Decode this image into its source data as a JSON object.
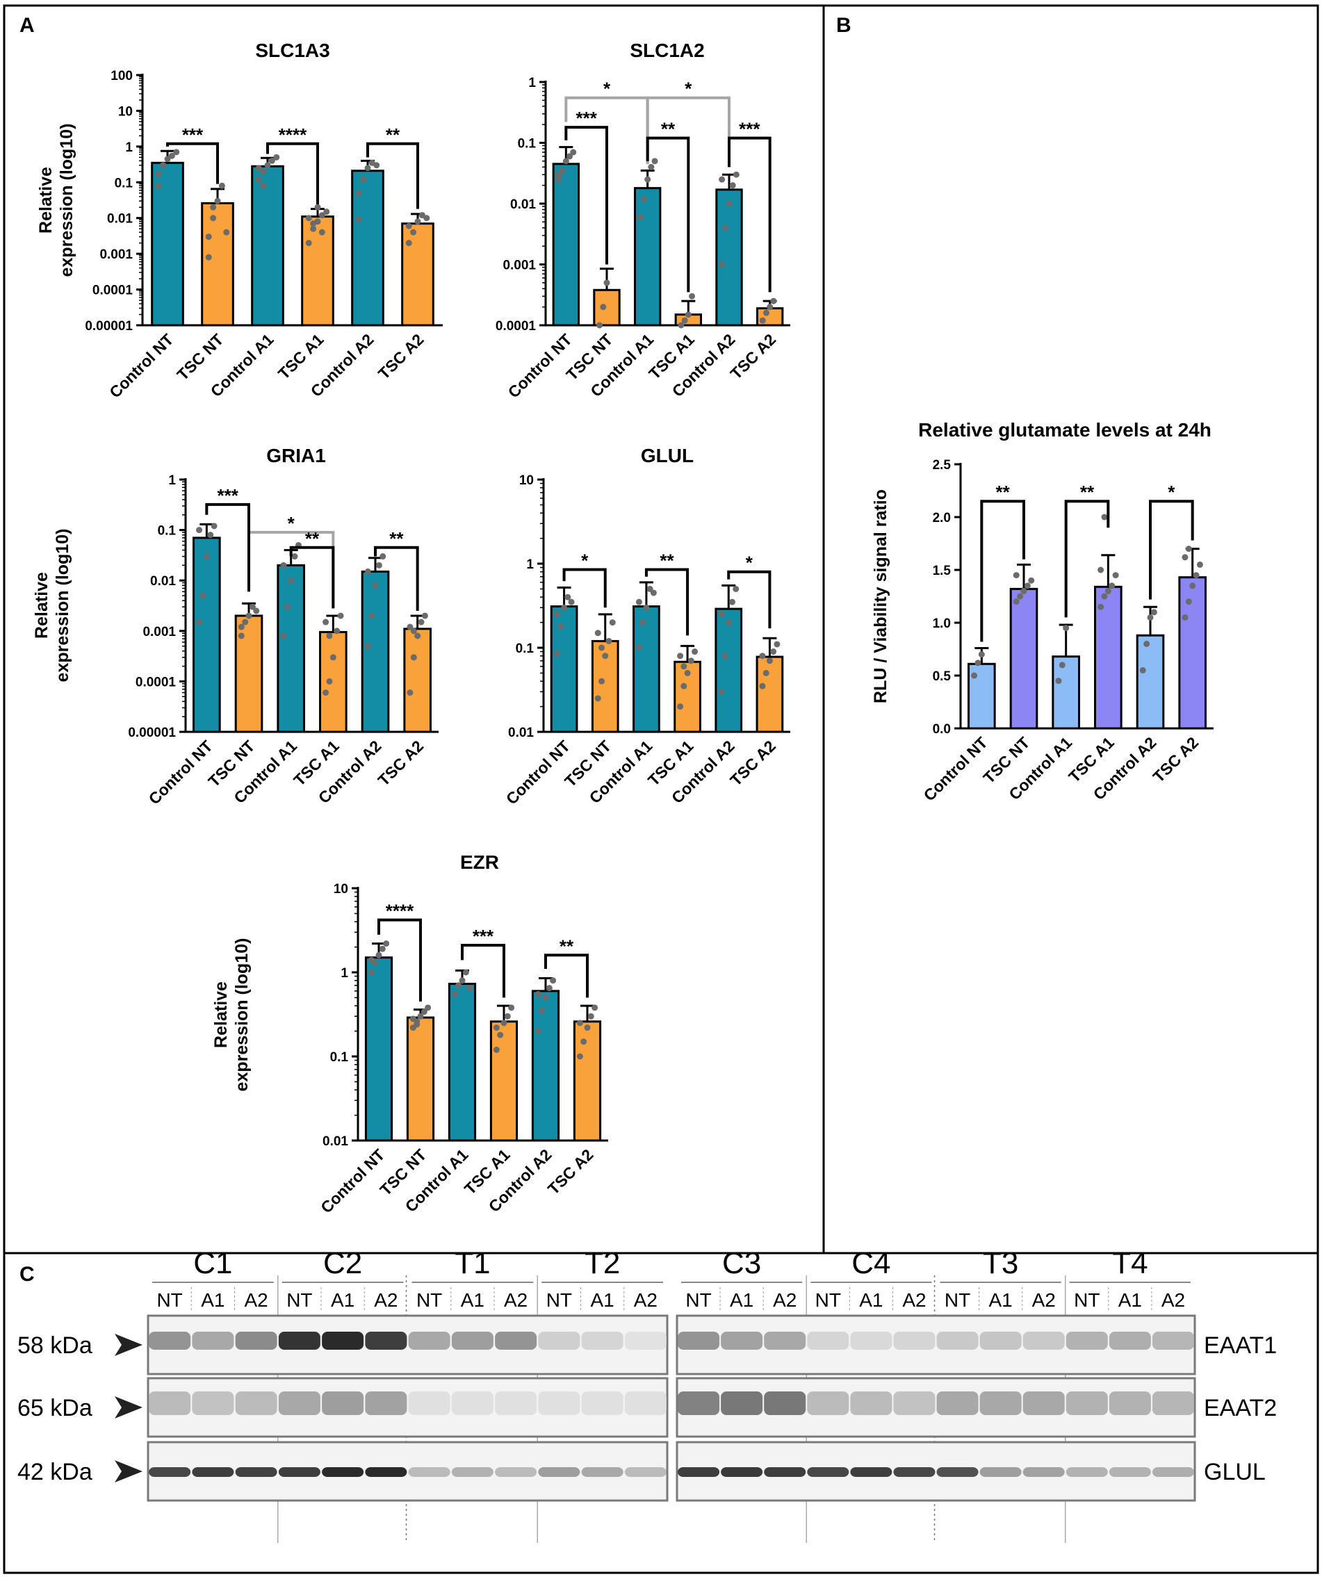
{
  "panels": {
    "a": "A",
    "b": "B",
    "c": "C"
  },
  "colors": {
    "control": "#138da5",
    "tsc": "#f9a23c",
    "control_glut": "#8cbcf5",
    "tsc_glut": "#8b86f3",
    "dot": "#6b6b6b",
    "bracket": "#000000",
    "bracket_gray": "#a6a6a6"
  },
  "chart_data": [
    {
      "id": "slc1a3",
      "type": "bar",
      "scale": "log",
      "title": "SLC1A3",
      "ylabel": "Relative expression (log10)",
      "ylabel_lines": [
        "Relative",
        "expression (log10)"
      ],
      "ylim": [
        1e-05,
        100
      ],
      "yticks": [
        1e-05,
        0.0001,
        0.001,
        0.01,
        0.1,
        1,
        10,
        100
      ],
      "ytick_labels": [
        "0.00001",
        "0.0001",
        "0.001",
        "0.01",
        "0.1",
        "1",
        "10",
        "100"
      ],
      "categories": [
        "Control NT",
        "TSC NT",
        "Control A1",
        "TSC A1",
        "Control A2",
        "TSC A2"
      ],
      "groups": [
        "control",
        "tsc",
        "control",
        "tsc",
        "control",
        "tsc"
      ],
      "values": [
        0.35,
        0.026,
        0.28,
        0.011,
        0.21,
        0.007
      ],
      "err_high": [
        0.75,
        0.065,
        0.48,
        0.018,
        0.4,
        0.013
      ],
      "points": [
        [
          0.17,
          0.3,
          0.45,
          0.55,
          0.7,
          0.08
        ],
        [
          0.003,
          0.01,
          0.03,
          0.08,
          0.004,
          0.0008,
          0.02
        ],
        [
          0.12,
          0.2,
          0.3,
          0.4,
          0.5,
          0.25,
          0.08
        ],
        [
          0.002,
          0.005,
          0.008,
          0.012,
          0.015,
          0.01,
          0.007,
          0.02,
          0.004
        ],
        [
          0.05,
          0.12,
          0.25,
          0.35,
          0.3,
          0.009
        ],
        [
          0.002,
          0.004,
          0.008,
          0.012,
          0.01,
          0.006
        ]
      ],
      "brackets": [
        {
          "from": 0,
          "to": 1,
          "level": 1.2,
          "drop_to": [
            1,
            0.09
          ],
          "label": "***",
          "color": "black"
        },
        {
          "from": 2,
          "to": 3,
          "level": 1.2,
          "drop_to": [
            0.62,
            0.024
          ],
          "label": "****",
          "color": "black"
        },
        {
          "from": 4,
          "to": 5,
          "level": 1.2,
          "drop_to": [
            0.5,
            0.018
          ],
          "label": "**",
          "color": "black"
        }
      ]
    },
    {
      "id": "slc1a2",
      "type": "bar",
      "scale": "log",
      "title": "SLC1A2",
      "ylabel": "",
      "ylabel_lines": [],
      "ylim": [
        0.0001,
        1
      ],
      "yticks": [
        0.0001,
        0.001,
        0.01,
        0.1,
        1
      ],
      "ytick_labels": [
        "0.0001",
        "0.001",
        "0.01",
        "0.1",
        "1"
      ],
      "categories": [
        "Control NT",
        "TSC NT",
        "Control A1",
        "TSC A1",
        "Control A2",
        "TSC A2"
      ],
      "groups": [
        "control",
        "tsc",
        "control",
        "tsc",
        "control",
        "tsc"
      ],
      "values": [
        0.045,
        0.00038,
        0.018,
        0.00015,
        0.017,
        0.00019
      ],
      "err_high": [
        0.085,
        0.00085,
        0.035,
        0.00025,
        0.03,
        0.00025
      ],
      "points": [
        [
          0.025,
          0.035,
          0.05,
          0.06,
          0.07,
          0.03
        ],
        [
          0.0001,
          0.0002,
          0.0005
        ],
        [
          0.006,
          0.012,
          0.025,
          0.04,
          0.05
        ],
        [
          0.0001,
          0.00012,
          0.00015,
          0.0003
        ],
        [
          0.001,
          0.004,
          0.01,
          0.02,
          0.03,
          0.025
        ],
        [
          0.00012,
          0.00016,
          0.0002,
          0.00025
        ]
      ],
      "brackets": [
        {
          "from": 0,
          "to": 2,
          "level": 0.55,
          "drop_to": [
            0.22,
            0.045
          ],
          "label": "*",
          "color": "gray"
        },
        {
          "from": 2,
          "to": 4,
          "level": 0.55,
          "drop_to": [
            0.045,
            0.045
          ],
          "label": "*",
          "color": "gray"
        },
        {
          "from": 0,
          "to": 1,
          "level": 0.18,
          "drop_to": [
            0.11,
            0.001
          ],
          "label": "***",
          "color": "black"
        },
        {
          "from": 2,
          "to": 3,
          "level": 0.12,
          "drop_to": [
            0.05,
            0.00035
          ],
          "label": "**",
          "color": "black"
        },
        {
          "from": 4,
          "to": 5,
          "level": 0.12,
          "drop_to": [
            0.04,
            0.00035
          ],
          "label": "***",
          "color": "black"
        }
      ]
    },
    {
      "id": "gria1",
      "type": "bar",
      "scale": "log",
      "title": "GRIA1",
      "ylabel": "Relative expression (log10)",
      "ylabel_lines": [
        "Relative",
        "expression (log10)"
      ],
      "ylim": [
        1e-05,
        1
      ],
      "yticks": [
        1e-05,
        0.0001,
        0.001,
        0.01,
        0.1,
        1
      ],
      "ytick_labels": [
        "0.00001",
        "0.0001",
        "0.001",
        "0.01",
        "0.1",
        "1"
      ],
      "categories": [
        "Control NT",
        "TSC NT",
        "Control A1",
        "TSC A1",
        "Control A2",
        "TSC A2"
      ],
      "groups": [
        "control",
        "tsc",
        "control",
        "tsc",
        "control",
        "tsc"
      ],
      "values": [
        0.07,
        0.002,
        0.02,
        0.00095,
        0.015,
        0.0011
      ],
      "err_high": [
        0.13,
        0.0035,
        0.04,
        0.002,
        0.028,
        0.002
      ],
      "points": [
        [
          0.0015,
          0.005,
          0.03,
          0.08,
          0.12,
          0.1
        ],
        [
          0.0008,
          0.0015,
          0.002,
          0.003,
          0.0025,
          0.0012
        ],
        [
          0.0008,
          0.003,
          0.01,
          0.03,
          0.05,
          0.02
        ],
        [
          6e-05,
          0.0001,
          0.0003,
          0.001,
          0.002,
          0.0015,
          0.0008
        ],
        [
          0.0005,
          0.002,
          0.008,
          0.02,
          0.03,
          0.015
        ],
        [
          6e-05,
          0.0003,
          0.0008,
          0.0015,
          0.002,
          0.0012,
          0.001
        ]
      ],
      "brackets": [
        {
          "from": 1,
          "to": 3,
          "level": 0.09,
          "drop_to": [
            0.006,
            0.003
          ],
          "label": "*",
          "color": "gray"
        },
        {
          "from": 0,
          "to": 1,
          "level": 0.32,
          "drop_to": [
            0.2,
            0.006
          ],
          "label": "***",
          "color": "black"
        },
        {
          "from": 2,
          "to": 3,
          "level": 0.045,
          "drop_to": [
            0.03,
            0.0028
          ],
          "label": "**",
          "color": "black"
        },
        {
          "from": 4,
          "to": 5,
          "level": 0.045,
          "drop_to": [
            0.03,
            0.0025
          ],
          "label": "**",
          "color": "black"
        }
      ]
    },
    {
      "id": "glul",
      "type": "bar",
      "scale": "log",
      "title": "GLUL",
      "ylabel": "",
      "ylabel_lines": [],
      "ylim": [
        0.01,
        10
      ],
      "yticks": [
        0.01,
        0.1,
        1,
        10
      ],
      "ytick_labels": [
        "0.01",
        "0.1",
        "1",
        "10"
      ],
      "categories": [
        "Control NT",
        "TSC NT",
        "Control A1",
        "TSC A1",
        "Control A2",
        "TSC A2"
      ],
      "groups": [
        "control",
        "tsc",
        "control",
        "tsc",
        "control",
        "tsc"
      ],
      "values": [
        0.31,
        0.12,
        0.31,
        0.068,
        0.29,
        0.078
      ],
      "err_high": [
        0.52,
        0.25,
        0.6,
        0.105,
        0.55,
        0.13
      ],
      "points": [
        [
          0.085,
          0.18,
          0.3,
          0.4,
          0.35,
          0.25
        ],
        [
          0.025,
          0.04,
          0.08,
          0.12,
          0.2,
          0.15,
          0.1
        ],
        [
          0.1,
          0.2,
          0.3,
          0.5,
          0.45,
          0.35
        ],
        [
          0.02,
          0.035,
          0.05,
          0.07,
          0.09,
          0.08,
          0.06
        ],
        [
          0.03,
          0.08,
          0.2,
          0.35,
          0.5,
          0.25
        ],
        [
          0.035,
          0.05,
          0.07,
          0.09,
          0.11,
          0.08
        ]
      ],
      "brackets": [
        {
          "from": 0,
          "to": 1,
          "level": 0.85,
          "drop_to": [
            0.62,
            0.3
          ],
          "label": "*",
          "color": "black"
        },
        {
          "from": 2,
          "to": 3,
          "level": 0.85,
          "drop_to": [
            0.7,
            0.14
          ],
          "label": "**",
          "color": "black"
        },
        {
          "from": 4,
          "to": 5,
          "level": 0.8,
          "drop_to": [
            0.65,
            0.17
          ],
          "label": "*",
          "color": "black"
        }
      ]
    },
    {
      "id": "ezr",
      "type": "bar",
      "scale": "log",
      "title": "EZR",
      "ylabel": "Relative expression (log10)",
      "ylabel_lines": [
        "Relative",
        "expression (log10)"
      ],
      "ylim": [
        0.01,
        10
      ],
      "yticks": [
        0.01,
        0.1,
        1,
        10
      ],
      "ytick_labels": [
        "0.01",
        "0.1",
        "1",
        "10"
      ],
      "categories": [
        "Control NT",
        "TSC NT",
        "Control A1",
        "TSC A1",
        "Control A2",
        "TSC A2"
      ],
      "groups": [
        "control",
        "tsc",
        "control",
        "tsc",
        "control",
        "tsc"
      ],
      "values": [
        1.5,
        0.29,
        0.73,
        0.26,
        0.6,
        0.26
      ],
      "err_high": [
        2.2,
        0.36,
        1.05,
        0.4,
        0.85,
        0.4
      ],
      "points": [
        [
          1.0,
          1.3,
          1.6,
          1.9,
          2.2,
          1.4
        ],
        [
          0.22,
          0.26,
          0.3,
          0.34,
          0.38,
          0.28,
          0.24
        ],
        [
          0.55,
          0.7,
          0.8,
          1.0,
          0.65
        ],
        [
          0.12,
          0.18,
          0.25,
          0.3,
          0.38,
          0.22
        ],
        [
          0.2,
          0.35,
          0.5,
          0.65,
          0.8,
          0.55
        ],
        [
          0.1,
          0.15,
          0.22,
          0.3,
          0.38,
          0.25
        ]
      ],
      "brackets": [
        {
          "from": 0,
          "to": 1,
          "level": 4.2,
          "drop_to": [
            2.8,
            0.45
          ],
          "label": "****",
          "color": "black"
        },
        {
          "from": 2,
          "to": 3,
          "level": 2.1,
          "drop_to": [
            1.4,
            0.5
          ],
          "label": "***",
          "color": "black"
        },
        {
          "from": 4,
          "to": 5,
          "level": 1.6,
          "drop_to": [
            1.1,
            0.5
          ],
          "label": "**",
          "color": "black"
        }
      ]
    },
    {
      "id": "glutamate",
      "type": "bar",
      "scale": "linear",
      "title": "Relative glutamate levels at 24h",
      "ylabel": "RLU / Viability signal ratio",
      "ylabel_lines": [
        "RLU / Viability signal ratio"
      ],
      "ylim": [
        0,
        2.5
      ],
      "yticks": [
        0,
        0.5,
        1.0,
        1.5,
        2.0,
        2.5
      ],
      "ytick_labels": [
        "0.0",
        "0.5",
        "1.0",
        "1.5",
        "2.0",
        "2.5"
      ],
      "categories": [
        "Control NT",
        "TSC NT",
        "Control A1",
        "TSC A1",
        "Control A2",
        "TSC A2"
      ],
      "groups": [
        "control_glut",
        "tsc_glut",
        "control_glut",
        "tsc_glut",
        "control_glut",
        "tsc_glut"
      ],
      "values": [
        0.61,
        1.32,
        0.68,
        1.34,
        0.88,
        1.43
      ],
      "err_high": [
        0.76,
        1.55,
        0.98,
        1.64,
        1.15,
        1.7
      ],
      "points": [
        [
          0.5,
          0.62,
          0.7
        ],
        [
          1.2,
          1.25,
          1.3,
          1.35,
          1.4,
          1.45
        ],
        [
          0.45,
          0.6,
          0.95
        ],
        [
          1.15,
          1.25,
          1.3,
          1.35,
          1.45,
          1.5,
          2.0
        ],
        [
          0.55,
          0.8,
          1.05,
          1.1
        ],
        [
          1.05,
          1.2,
          1.35,
          1.45,
          1.55,
          1.62,
          1.7
        ]
      ],
      "brackets": [
        {
          "from": 0,
          "to": 1,
          "level": 2.15,
          "drop_to": [
            0.82,
            1.6
          ],
          "label": "**",
          "color": "black"
        },
        {
          "from": 2,
          "to": 3,
          "level": 2.15,
          "drop_to": [
            1.05,
            1.9
          ],
          "label": "**",
          "color": "black"
        },
        {
          "from": 4,
          "to": 5,
          "level": 2.15,
          "drop_to": [
            1.22,
            1.78
          ],
          "label": "*",
          "color": "black"
        }
      ]
    }
  ],
  "blot": {
    "groups_left": [
      {
        "label": "C1",
        "kind": "control"
      },
      {
        "label": "C2",
        "kind": "control"
      },
      {
        "label": "T1",
        "kind": "tsc"
      },
      {
        "label": "T2",
        "kind": "tsc"
      }
    ],
    "groups_right": [
      {
        "label": "C3",
        "kind": "control"
      },
      {
        "label": "C4",
        "kind": "control"
      },
      {
        "label": "T3",
        "kind": "tsc"
      },
      {
        "label": "T4",
        "kind": "tsc"
      }
    ],
    "lanes": [
      "NT",
      "A1",
      "A2"
    ],
    "rows": [
      {
        "marker": "58 kDa",
        "protein": "EAAT1",
        "intensity": [
          [
            0.45,
            0.35,
            0.5
          ],
          [
            0.95,
            1.0,
            0.9
          ],
          [
            0.35,
            0.4,
            0.45
          ],
          [
            0.15,
            0.12,
            0.05
          ],
          [
            0.45,
            0.38,
            0.35
          ],
          [
            0.12,
            0.1,
            0.12
          ],
          [
            0.18,
            0.2,
            0.18
          ],
          [
            0.3,
            0.32,
            0.28
          ]
        ]
      },
      {
        "marker": "65 kDa",
        "protein": "EAAT2",
        "intensity": [
          [
            0.25,
            0.22,
            0.25
          ],
          [
            0.35,
            0.4,
            0.38
          ],
          [
            0.06,
            0.06,
            0.06
          ],
          [
            0.06,
            0.06,
            0.06
          ],
          [
            0.55,
            0.6,
            0.6
          ],
          [
            0.25,
            0.25,
            0.22
          ],
          [
            0.35,
            0.35,
            0.35
          ],
          [
            0.3,
            0.3,
            0.28
          ]
        ]
      },
      {
        "marker": "42 kDa",
        "protein": "GLUL",
        "intensity": [
          [
            0.85,
            0.9,
            0.88
          ],
          [
            0.9,
            1.0,
            1.0
          ],
          [
            0.25,
            0.3,
            0.25
          ],
          [
            0.4,
            0.35,
            0.25
          ],
          [
            0.9,
            0.92,
            0.9
          ],
          [
            0.85,
            0.9,
            0.85
          ],
          [
            0.8,
            0.4,
            0.38
          ],
          [
            0.3,
            0.3,
            0.32
          ]
        ]
      }
    ]
  }
}
